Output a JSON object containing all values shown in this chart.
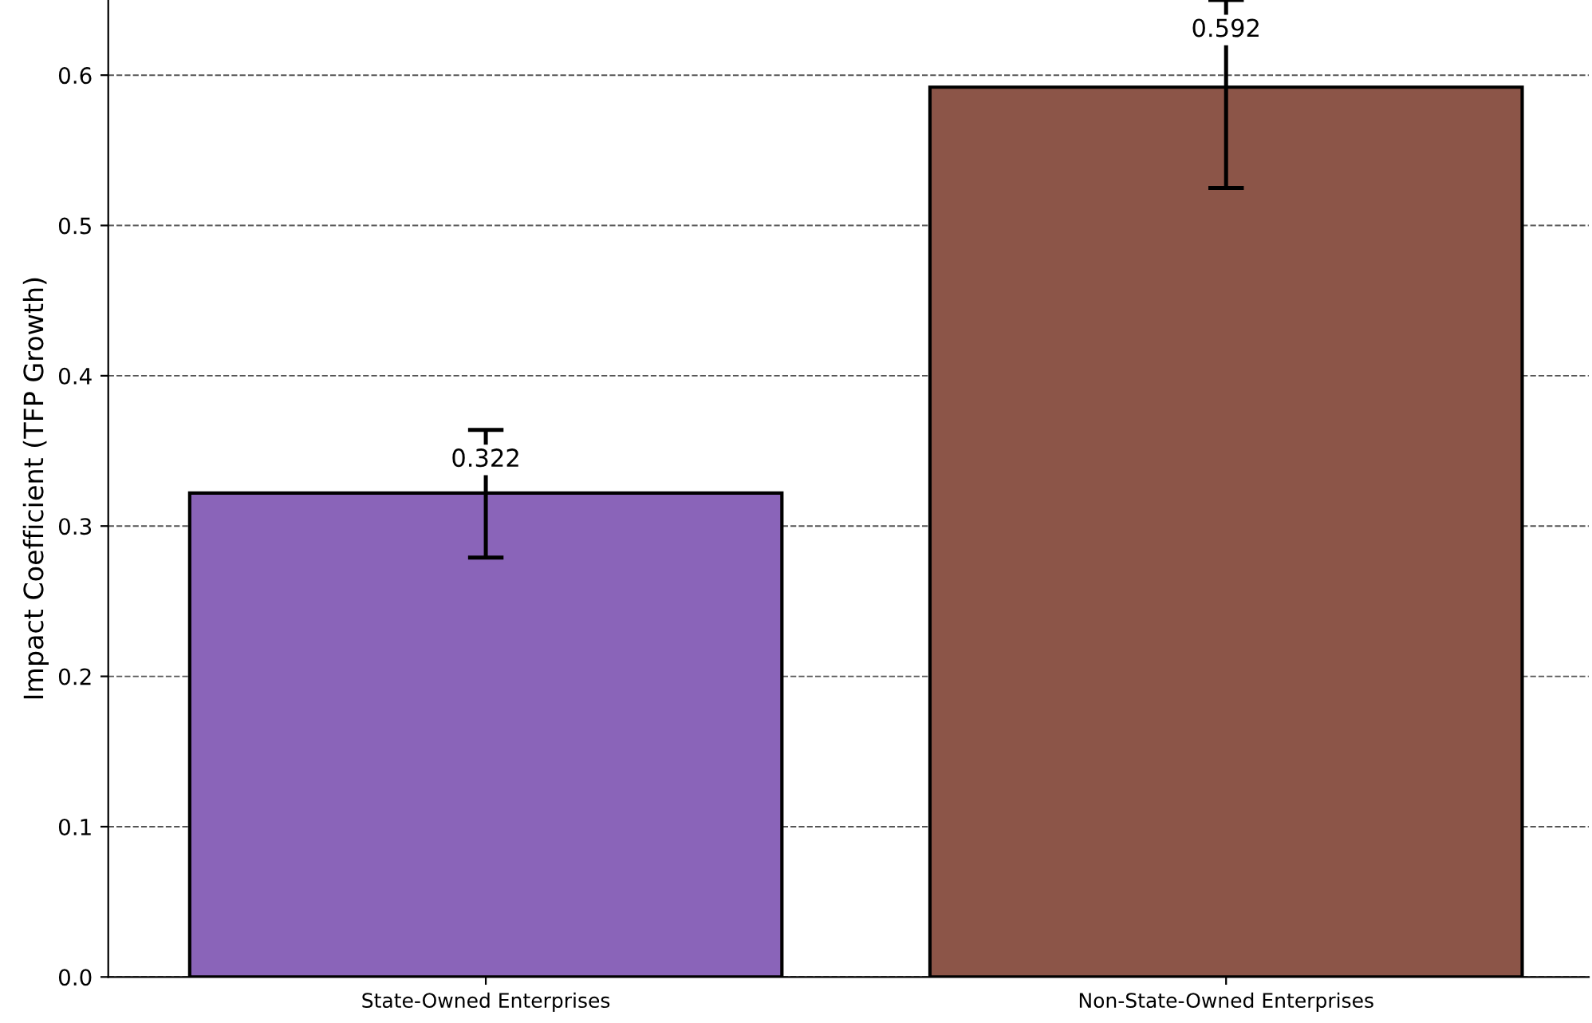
{
  "chart_data": {
    "type": "bar",
    "ylabel": "Impact Coefficient (TFP Growth)",
    "categories": [
      "State-Owned Enterprises",
      "Non-State-Owned Enterprises"
    ],
    "values": [
      0.322,
      0.592
    ],
    "colors": [
      "#8a64b9",
      "#8c5548"
    ],
    "errors": [
      [
        0.279,
        0.364
      ],
      [
        0.525,
        0.65
      ]
    ],
    "ylim": [
      0,
      0.65
    ],
    "yticks": [
      {
        "value": 0,
        "label": "0.0"
      },
      0.1,
      0.2,
      0.3,
      0.4,
      0.5,
      0.6
    ],
    "grid": "y",
    "data_labels": true
  }
}
